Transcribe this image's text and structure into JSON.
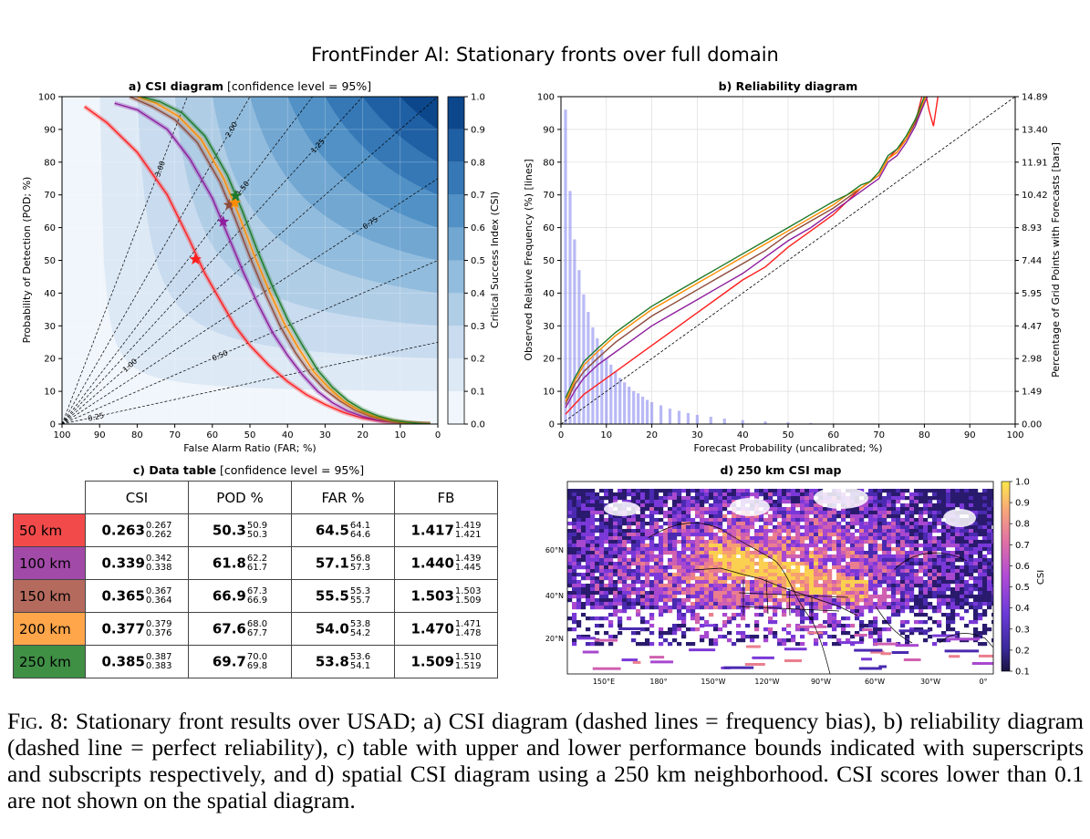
{
  "title": "FrontFinder AI: Stationary fronts over full domain",
  "panel_a": {
    "title_bold": "a) CSI diagram",
    "title_rest": " [confidence level = 95%]",
    "xlabel": "False Alarm Ratio (FAR; %)",
    "ylabel": "Probability of Detection (POD; %)",
    "colorbar_label": "Critical Success Index (CSI)",
    "x_ticks": [
      "100",
      "90",
      "80",
      "70",
      "60",
      "50",
      "40",
      "30",
      "20",
      "10",
      "0"
    ],
    "y_ticks": [
      "0",
      "10",
      "20",
      "30",
      "40",
      "50",
      "60",
      "70",
      "80",
      "90",
      "100"
    ],
    "cb_ticks": [
      "0.0",
      "0.1",
      "0.2",
      "0.3",
      "0.4",
      "0.5",
      "0.6",
      "0.7",
      "0.8",
      "0.9",
      "1.0"
    ],
    "bias_labels": [
      "0.25",
      "0.50",
      "0.75",
      "1.00",
      "1.25",
      "1.50",
      "2.00",
      "3.00"
    ]
  },
  "panel_b": {
    "title": "b) Reliability diagram",
    "xlabel": "Forecast Probability (uncalibrated; %)",
    "ylabel": "Observed Relative Frequency (%) [lines]",
    "ylabel_right": "Percentage of Grid Points with Forecasts [bars]",
    "x_ticks": [
      "0",
      "10",
      "20",
      "30",
      "40",
      "50",
      "60",
      "70",
      "80",
      "90",
      "100"
    ],
    "y_ticks": [
      "0",
      "10",
      "20",
      "30",
      "40",
      "50",
      "60",
      "70",
      "80",
      "90",
      "100"
    ],
    "y_right_ticks": [
      "0.00",
      "1.49",
      "2.98",
      "4.47",
      "5.95",
      "7.44",
      "8.93",
      "10.42",
      "11.91",
      "13.40",
      "14.89"
    ]
  },
  "panel_c": {
    "title_bold": "c) Data table",
    "title_rest": " [confidence level = 95%]",
    "headers": [
      "CSI",
      "POD %",
      "FAR %",
      "FB"
    ],
    "rows": [
      {
        "label": "50 km",
        "color": "#f24a4a",
        "cells": [
          [
            "0.263",
            "0.267",
            "0.262"
          ],
          [
            "50.3",
            "50.9",
            "50.3"
          ],
          [
            "64.5",
            "64.1",
            "64.6"
          ],
          [
            "1.417",
            "1.419",
            "1.421"
          ]
        ]
      },
      {
        "label": "100 km",
        "color": "#a24aa8",
        "cells": [
          [
            "0.339",
            "0.342",
            "0.338"
          ],
          [
            "61.8",
            "62.2",
            "61.7"
          ],
          [
            "57.1",
            "56.8",
            "57.3"
          ],
          [
            "1.440",
            "1.439",
            "1.445"
          ]
        ]
      },
      {
        "label": "150 km",
        "color": "#b56a5e",
        "cells": [
          [
            "0.365",
            "0.367",
            "0.364"
          ],
          [
            "66.9",
            "67.3",
            "66.9"
          ],
          [
            "55.5",
            "55.3",
            "55.7"
          ],
          [
            "1.503",
            "1.503",
            "1.509"
          ]
        ]
      },
      {
        "label": "200 km",
        "color": "#ffa54a",
        "cells": [
          [
            "0.377",
            "0.379",
            "0.376"
          ],
          [
            "67.6",
            "68.0",
            "67.7"
          ],
          [
            "54.0",
            "53.8",
            "54.2"
          ],
          [
            "1.470",
            "1.471",
            "1.478"
          ]
        ]
      },
      {
        "label": "250 km",
        "color": "#3f8f45",
        "cells": [
          [
            "0.385",
            "0.387",
            "0.383"
          ],
          [
            "69.7",
            "70.0",
            "69.8"
          ],
          [
            "53.8",
            "53.6",
            "54.1"
          ],
          [
            "1.509",
            "1.510",
            "1.519"
          ]
        ]
      }
    ]
  },
  "panel_d": {
    "title": "d) 250 km CSI map",
    "colorbar_label": "CSI",
    "cb_ticks": [
      "0.1",
      "0.2",
      "0.3",
      "0.4",
      "0.5",
      "0.6",
      "0.7",
      "0.8",
      "0.9",
      "1.0"
    ],
    "lat_labels": [
      "60°N",
      "40°N",
      "20°N"
    ],
    "lon_labels": [
      "150°E",
      "180°",
      "150°W",
      "120°W",
      "90°W",
      "60°W",
      "30°W",
      "0°"
    ]
  },
  "chart_data": [
    {
      "type": "line",
      "title": "a) CSI diagram [confidence level = 95%]",
      "xlabel": "False Alarm Ratio (FAR; %)",
      "ylabel": "Probability of Detection (POD; %)",
      "xlim": [
        100,
        0
      ],
      "ylim": [
        0,
        100
      ],
      "x_reversed": true,
      "grid": true,
      "series": [
        {
          "name": "50 km",
          "color": "#ff1e1e",
          "far": [
            94,
            88,
            80,
            72,
            66,
            62,
            58,
            54,
            50,
            45,
            40,
            35,
            30,
            25,
            20,
            15,
            10,
            5,
            2
          ],
          "pod": [
            97,
            92,
            83,
            70,
            56,
            46,
            38,
            30,
            24,
            18,
            13,
            9,
            6,
            3.5,
            1.8,
            0.9,
            0.4,
            0.1,
            0
          ],
          "point": [
            64.5,
            50.3
          ]
        },
        {
          "name": "100 km",
          "color": "#8e1e9e",
          "far": [
            86,
            80,
            72,
            66,
            60,
            56,
            52,
            48,
            44,
            40,
            36,
            32,
            28,
            24,
            20,
            16,
            12,
            8,
            4,
            2
          ],
          "pod": [
            98,
            96,
            90,
            81,
            69,
            58,
            47,
            37,
            28,
            21,
            15,
            10,
            6.5,
            4,
            2.3,
            1.2,
            0.6,
            0.2,
            0.05,
            0
          ],
          "point": [
            57.1,
            61.8
          ]
        },
        {
          "name": "150 km",
          "color": "#8e4a3a",
          "far": [
            82,
            76,
            70,
            64,
            58,
            54,
            50,
            46,
            42,
            38,
            34,
            30,
            26,
            22,
            18,
            14,
            10,
            6,
            2
          ],
          "pod": [
            100,
            97,
            93,
            86,
            74,
            63,
            51,
            40,
            30,
            22,
            15.5,
            10.5,
            7,
            4.2,
            2.4,
            1.2,
            0.5,
            0.15,
            0
          ],
          "point": [
            55.5,
            66.9
          ]
        },
        {
          "name": "200 km",
          "color": "#ff8c00",
          "far": [
            80,
            75,
            69,
            63,
            57,
            53,
            49,
            45,
            41,
            37,
            33,
            29,
            25,
            21,
            17,
            13,
            9,
            5,
            2
          ],
          "pod": [
            100,
            98,
            94,
            87,
            75,
            64,
            52,
            41,
            31,
            23,
            16,
            11,
            7,
            4.3,
            2.4,
            1.2,
            0.5,
            0.15,
            0
          ],
          "point": [
            54.0,
            67.6
          ]
        },
        {
          "name": "250 km",
          "color": "#1e7a28",
          "far": [
            79,
            74,
            68,
            62,
            56,
            52,
            48,
            44,
            40,
            36,
            32,
            28,
            24,
            20,
            16,
            12,
            8,
            4,
            2
          ],
          "pod": [
            100,
            98.5,
            95,
            88,
            76,
            65,
            53,
            42,
            32,
            24,
            16.5,
            11.2,
            7.2,
            4.4,
            2.5,
            1.2,
            0.5,
            0.12,
            0
          ],
          "point": [
            53.8,
            69.7
          ]
        }
      ]
    },
    {
      "type": "line",
      "title": "b) Reliability diagram",
      "xlabel": "Forecast Probability (uncalibrated; %)",
      "ylabel": "Observed Relative Frequency (%) [lines]",
      "xlim": [
        0,
        100
      ],
      "ylim": [
        0,
        100
      ],
      "grid": true,
      "series": [
        {
          "name": "50 km",
          "color": "#ff1e1e",
          "x": [
            1,
            3,
            5,
            8,
            12,
            16,
            20,
            25,
            30,
            35,
            40,
            45,
            50,
            55,
            60,
            63,
            66,
            68,
            70,
            72,
            74,
            76,
            78,
            80,
            81,
            82,
            83
          ],
          "y": [
            3,
            6,
            9,
            12,
            16,
            20,
            24,
            29,
            34,
            39,
            44,
            48,
            54,
            59,
            64,
            68,
            72,
            74,
            76,
            81,
            84,
            87,
            92,
            103,
            96,
            91,
            100
          ]
        },
        {
          "name": "100 km",
          "color": "#8e1e9e",
          "x": [
            1,
            3,
            5,
            8,
            12,
            16,
            20,
            25,
            30,
            35,
            40,
            45,
            50,
            55,
            60,
            63,
            66,
            68,
            70,
            72,
            74,
            76,
            78,
            80,
            82
          ],
          "y": [
            5,
            10,
            14,
            18,
            22,
            26,
            30,
            34,
            38,
            42,
            46,
            51,
            56,
            60,
            65,
            68,
            71,
            73,
            75,
            80,
            82,
            86,
            91,
            98,
            104
          ]
        },
        {
          "name": "150 km",
          "color": "#8e4a3a",
          "x": [
            1,
            3,
            5,
            8,
            12,
            16,
            20,
            25,
            30,
            35,
            40,
            45,
            50,
            55,
            60,
            63,
            66,
            68,
            70,
            72,
            74,
            76,
            78,
            80,
            82
          ],
          "y": [
            6,
            12,
            16,
            20,
            25,
            29,
            33,
            37,
            41,
            45,
            49,
            53,
            58,
            62,
            66,
            69,
            72,
            74,
            76,
            81,
            83,
            87,
            92,
            99,
            105
          ]
        },
        {
          "name": "200 km",
          "color": "#ff8c00",
          "x": [
            1,
            3,
            5,
            8,
            12,
            16,
            20,
            25,
            30,
            35,
            40,
            45,
            50,
            55,
            60,
            63,
            66,
            68,
            70,
            72,
            74,
            76,
            78,
            80,
            82
          ],
          "y": [
            7,
            13,
            18,
            22,
            27,
            31,
            35,
            39,
            43,
            47,
            51,
            55,
            59,
            63,
            67,
            70,
            72,
            74,
            76,
            81,
            83,
            87,
            93,
            99,
            105
          ]
        },
        {
          "name": "250 km",
          "color": "#1e7a28",
          "x": [
            1,
            3,
            5,
            8,
            12,
            16,
            20,
            25,
            30,
            35,
            40,
            45,
            50,
            55,
            60,
            63,
            66,
            68,
            70,
            72,
            74,
            76,
            78,
            80,
            82
          ],
          "y": [
            8,
            14,
            19,
            23,
            28,
            32,
            36,
            40,
            44,
            48,
            52,
            56,
            60,
            64,
            68,
            70,
            73,
            74,
            77,
            82,
            84,
            88,
            93,
            100,
            106
          ]
        }
      ],
      "bars": {
        "x": [
          1,
          2,
          3,
          4,
          5,
          6,
          7,
          8,
          9,
          10,
          11,
          12,
          13,
          14,
          15,
          16,
          17,
          18,
          19,
          20,
          22,
          24,
          26,
          28,
          30,
          33,
          36,
          40,
          45,
          50,
          55,
          60
        ],
        "percent": [
          14.3,
          10.6,
          8.4,
          7.0,
          5.9,
          5.1,
          4.4,
          3.9,
          3.4,
          3.0,
          2.7,
          2.4,
          2.1,
          1.9,
          1.7,
          1.5,
          1.4,
          1.25,
          1.1,
          1.0,
          0.85,
          0.7,
          0.6,
          0.5,
          0.42,
          0.33,
          0.25,
          0.18,
          0.12,
          0.08,
          0.05,
          0.03
        ]
      }
    },
    {
      "type": "table",
      "title": "c) Data table [confidence level = 95%]",
      "columns": [
        "CSI",
        "POD %",
        "FAR %",
        "FB"
      ],
      "rows": [
        "50 km",
        "100 km",
        "150 km",
        "200 km",
        "250 km"
      ]
    },
    {
      "type": "heatmap",
      "title": "d) 250 km CSI map",
      "colorbar": {
        "label": "CSI",
        "range": [
          0.1,
          1.0
        ],
        "colormap": "plasma"
      }
    }
  ],
  "caption": {
    "fig": "Fig. 8:",
    "text": " Stationary front results over USAD; a) CSI diagram (dashed lines = frequency bias), b) reliability diagram (dashed line = perfect reliability), c) table with upper and lower performance bounds indicated with superscripts and subscripts respectively, and d) spatial CSI diagram using a 250 km neighborhood. CSI scores lower than 0.1 are not shown on the spatial diagram."
  }
}
